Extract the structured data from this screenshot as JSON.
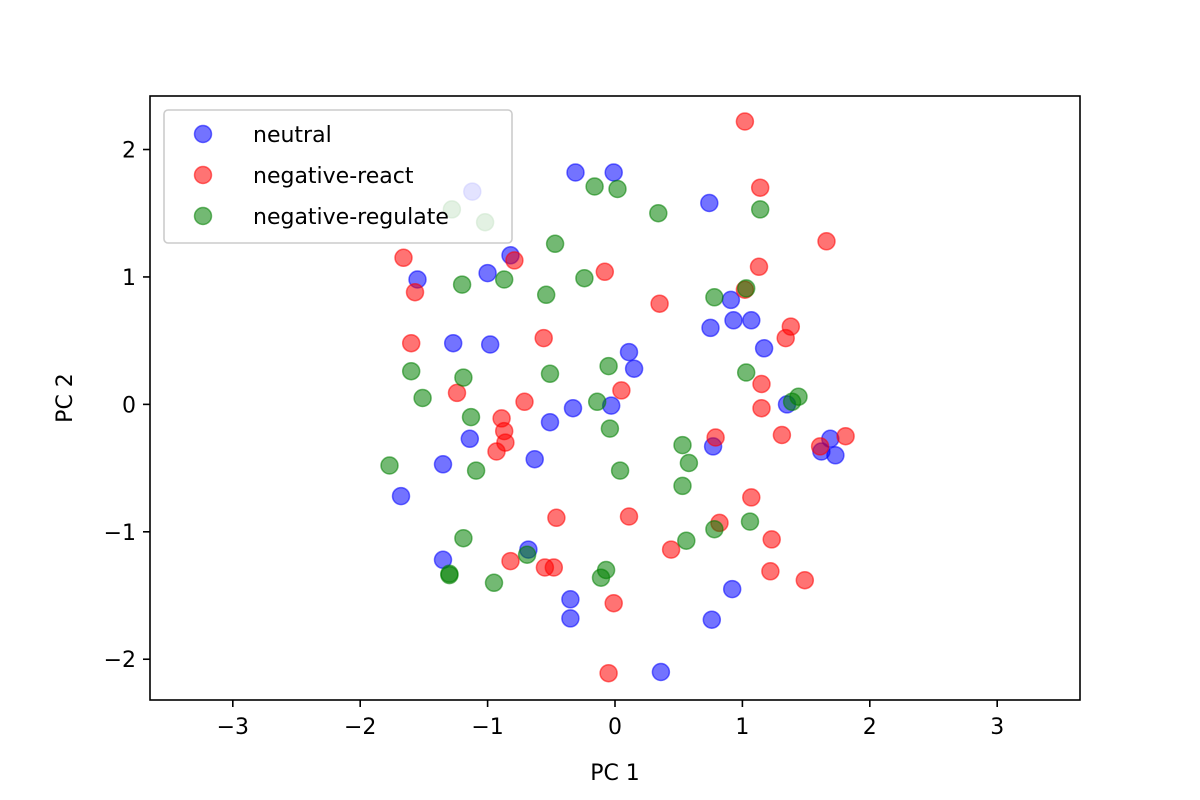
{
  "chart_data": {
    "type": "scatter",
    "title": "",
    "xlabel": "PC 1",
    "ylabel": "PC 2",
    "xlim": [
      -3.65,
      3.65
    ],
    "ylim": [
      -2.32,
      2.42
    ],
    "xticks": [
      -3,
      -2,
      -1,
      0,
      1,
      2,
      3
    ],
    "yticks": [
      -2,
      -1,
      0,
      1,
      2
    ],
    "xtick_labels": [
      "−3",
      "−2",
      "−1",
      "0",
      "1",
      "2",
      "3"
    ],
    "ytick_labels": [
      "−2",
      "−1",
      "0",
      "1",
      "2"
    ],
    "grid": false,
    "legend_position": "top-left",
    "marker_alpha": 0.55,
    "series": [
      {
        "name": "neutral",
        "color": "#0000ff",
        "points": [
          [
            -1.12,
            1.67
          ],
          [
            -0.31,
            1.82
          ],
          [
            -0.01,
            1.82
          ],
          [
            0.74,
            1.58
          ],
          [
            -0.82,
            1.17
          ],
          [
            -1.55,
            0.98
          ],
          [
            -1.0,
            1.03
          ],
          [
            0.91,
            0.82
          ],
          [
            0.75,
            0.6
          ],
          [
            0.93,
            0.66
          ],
          [
            1.07,
            0.66
          ],
          [
            1.17,
            0.44
          ],
          [
            -1.27,
            0.48
          ],
          [
            -0.98,
            0.47
          ],
          [
            0.11,
            0.41
          ],
          [
            0.15,
            0.28
          ],
          [
            -0.33,
            -0.03
          ],
          [
            -0.03,
            -0.01
          ],
          [
            1.35,
            0.0
          ],
          [
            -0.51,
            -0.14
          ],
          [
            -1.14,
            -0.27
          ],
          [
            -1.35,
            -0.47
          ],
          [
            -0.63,
            -0.43
          ],
          [
            0.77,
            -0.33
          ],
          [
            1.62,
            -0.37
          ],
          [
            1.69,
            -0.27
          ],
          [
            1.73,
            -0.4
          ],
          [
            -1.68,
            -0.72
          ],
          [
            -1.35,
            -1.22
          ],
          [
            -0.68,
            -1.14
          ],
          [
            -0.35,
            -1.53
          ],
          [
            -0.35,
            -1.68
          ],
          [
            0.36,
            -2.1
          ],
          [
            0.76,
            -1.69
          ],
          [
            0.92,
            -1.45
          ]
        ]
      },
      {
        "name": "negative-react",
        "color": "#ff0000",
        "points": [
          [
            1.02,
            2.22
          ],
          [
            1.14,
            1.7
          ],
          [
            1.66,
            1.28
          ],
          [
            -1.66,
            1.15
          ],
          [
            -0.79,
            1.13
          ],
          [
            -1.57,
            0.88
          ],
          [
            -0.08,
            1.04
          ],
          [
            1.13,
            1.08
          ],
          [
            0.35,
            0.79
          ],
          [
            1.02,
            0.9
          ],
          [
            1.38,
            0.61
          ],
          [
            1.34,
            0.52
          ],
          [
            -1.6,
            0.48
          ],
          [
            -0.56,
            0.52
          ],
          [
            1.15,
            0.16
          ],
          [
            0.05,
            0.11
          ],
          [
            -1.24,
            0.09
          ],
          [
            -0.71,
            0.02
          ],
          [
            1.15,
            -0.03
          ],
          [
            -0.89,
            -0.11
          ],
          [
            -0.87,
            -0.21
          ],
          [
            -0.86,
            -0.3
          ],
          [
            -0.93,
            -0.37
          ],
          [
            0.79,
            -0.26
          ],
          [
            1.31,
            -0.24
          ],
          [
            1.61,
            -0.33
          ],
          [
            1.81,
            -0.25
          ],
          [
            1.07,
            -0.73
          ],
          [
            -0.46,
            -0.89
          ],
          [
            0.11,
            -0.88
          ],
          [
            0.82,
            -0.93
          ],
          [
            1.23,
            -1.06
          ],
          [
            -0.82,
            -1.23
          ],
          [
            -0.55,
            -1.28
          ],
          [
            -0.48,
            -1.28
          ],
          [
            0.44,
            -1.14
          ],
          [
            1.22,
            -1.31
          ],
          [
            1.49,
            -1.38
          ],
          [
            -0.01,
            -1.56
          ],
          [
            -0.05,
            -2.11
          ]
        ]
      },
      {
        "name": "negative-regulate",
        "color": "#008000",
        "points": [
          [
            -1.28,
            1.53
          ],
          [
            -1.02,
            1.43
          ],
          [
            -0.16,
            1.71
          ],
          [
            0.02,
            1.69
          ],
          [
            0.34,
            1.5
          ],
          [
            1.14,
            1.53
          ],
          [
            -0.47,
            1.26
          ],
          [
            -1.2,
            0.94
          ],
          [
            -0.87,
            0.98
          ],
          [
            -0.54,
            0.86
          ],
          [
            -0.24,
            0.99
          ],
          [
            0.78,
            0.84
          ],
          [
            1.03,
            0.91
          ],
          [
            -1.6,
            0.26
          ],
          [
            -1.19,
            0.21
          ],
          [
            -0.51,
            0.24
          ],
          [
            -0.05,
            0.3
          ],
          [
            1.03,
            0.25
          ],
          [
            -1.51,
            0.05
          ],
          [
            -1.13,
            -0.1
          ],
          [
            -0.14,
            0.02
          ],
          [
            1.39,
            0.02
          ],
          [
            1.44,
            0.06
          ],
          [
            -0.04,
            -0.19
          ],
          [
            0.53,
            -0.32
          ],
          [
            -1.77,
            -0.48
          ],
          [
            -1.09,
            -0.52
          ],
          [
            0.58,
            -0.46
          ],
          [
            0.04,
            -0.52
          ],
          [
            0.53,
            -0.64
          ],
          [
            -1.19,
            -1.05
          ],
          [
            0.78,
            -0.98
          ],
          [
            1.06,
            -0.92
          ],
          [
            0.56,
            -1.07
          ],
          [
            -0.69,
            -1.18
          ],
          [
            -1.3,
            -1.33
          ],
          [
            -1.3,
            -1.34
          ],
          [
            -0.95,
            -1.4
          ],
          [
            -0.11,
            -1.36
          ],
          [
            -0.07,
            -1.3
          ]
        ]
      }
    ]
  }
}
